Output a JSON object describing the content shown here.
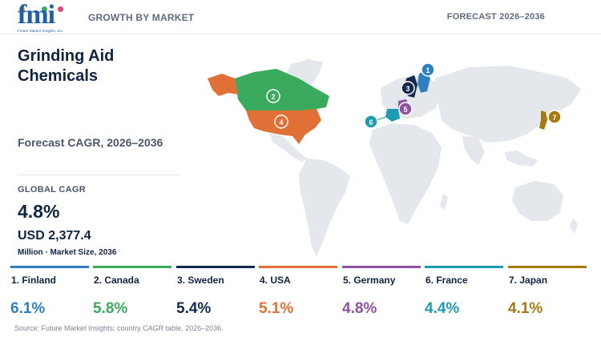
{
  "header": {
    "logo_text": "fmi",
    "logo_tagline": "Future Market Insights, Inc.",
    "left_label": "GROWTH BY MARKET",
    "right_label": "FORECAST 2026–2036"
  },
  "report": {
    "title": "Grinding Aid Chemicals",
    "subtitle": "Forecast CAGR, 2026–2036",
    "global_cagr_label": "GLOBAL CAGR",
    "global_cagr_value": "4.8%",
    "market_size_value": "USD 2,377.4",
    "market_size_unit": "Million · Market Size, 2036"
  },
  "colors": {
    "finland": "#2f7fc1",
    "canada": "#3aaa5c",
    "sweden": "#13294b",
    "usa": "#e07036",
    "germany": "#8e52a3",
    "france": "#1f9bb2",
    "japan": "#a37a12",
    "land": "#e4e7eb"
  },
  "countries": [
    {
      "rank": 1,
      "label": "1. Finland",
      "cagr": "6.1%",
      "color": "#2f7fc1"
    },
    {
      "rank": 2,
      "label": "2. Canada",
      "cagr": "5.8%",
      "color": "#3aaa5c"
    },
    {
      "rank": 3,
      "label": "3. Sweden",
      "cagr": "5.4%",
      "color": "#13294b"
    },
    {
      "rank": 4,
      "label": "4. USA",
      "cagr": "5.1%",
      "color": "#e07036"
    },
    {
      "rank": 5,
      "label": "5. Germany",
      "cagr": "4.8%",
      "color": "#8e52a3"
    },
    {
      "rank": 6,
      "label": "6. France",
      "cagr": "4.4%",
      "color": "#1f9bb2"
    },
    {
      "rank": 7,
      "label": "7. Japan",
      "cagr": "4.1%",
      "color": "#a37a12"
    }
  ],
  "markers": [
    "1",
    "2",
    "3",
    "4",
    "5",
    "6",
    "7"
  ],
  "source": "Source: Future Market Insights; country CAGR table, 2026–2036."
}
